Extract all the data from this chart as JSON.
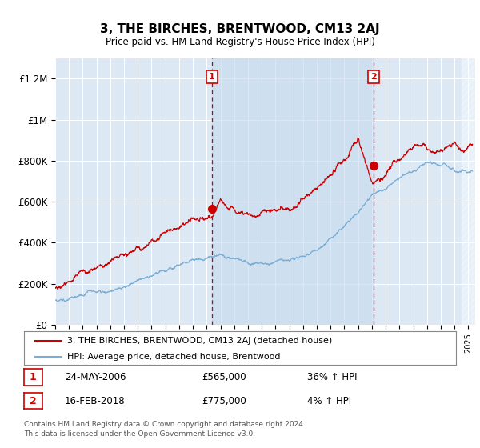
{
  "title": "3, THE BIRCHES, BRENTWOOD, CM13 2AJ",
  "subtitle": "Price paid vs. HM Land Registry's House Price Index (HPI)",
  "ylim": [
    0,
    1300000
  ],
  "yticks": [
    0,
    200000,
    400000,
    600000,
    800000,
    1000000,
    1200000
  ],
  "ytick_labels": [
    "£0",
    "£200K",
    "£400K",
    "£600K",
    "£800K",
    "£1M",
    "£1.2M"
  ],
  "background_color": "#dce9f5",
  "line_color_red": "#cc0000",
  "line_color_blue": "#7aadd4",
  "transaction1_x": 2006.38,
  "transaction1_y": 565000,
  "transaction2_x": 2018.12,
  "transaction2_y": 775000,
  "legend_line1": "3, THE BIRCHES, BRENTWOOD, CM13 2AJ (detached house)",
  "legend_line2": "HPI: Average price, detached house, Brentwood",
  "footer1": "Contains HM Land Registry data © Crown copyright and database right 2024.",
  "footer2": "This data is licensed under the Open Government Licence v3.0.",
  "transaction1_date": "24-MAY-2006",
  "transaction1_price": "£565,000",
  "transaction1_hpi": "36% ↑ HPI",
  "transaction2_date": "16-FEB-2018",
  "transaction2_price": "£775,000",
  "transaction2_hpi": "4% ↑ HPI",
  "xmin": 1995,
  "xmax": 2025.5
}
